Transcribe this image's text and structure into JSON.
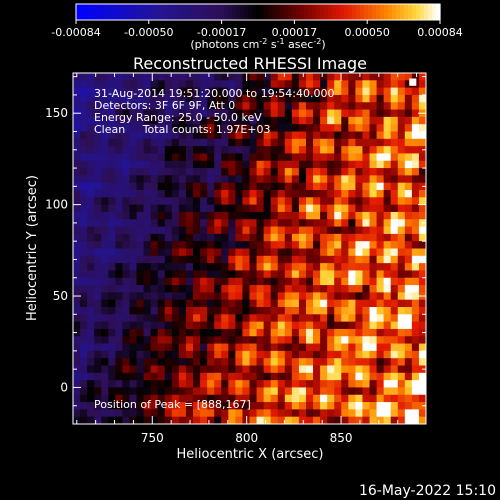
{
  "chart_data": {
    "type": "heatmap",
    "title": "Reconstructed RHESSI Image",
    "xlabel": "Heliocentric X (arcsec)",
    "ylabel": "Heliocentric Y (arcsec)",
    "xlim": [
      708,
      895
    ],
    "ylim": [
      -20,
      172
    ],
    "x_ticks": [
      750,
      800,
      850
    ],
    "y_ticks": [
      0,
      50,
      100,
      150
    ],
    "colorbar": {
      "colormap": "red-temperature with blue negatives",
      "range": [
        -0.00084,
        0.00084
      ],
      "ticks": [
        "-0.00084",
        "-0.00050",
        "-0.00017",
        "0.00017",
        "0.00050",
        "0.00084"
      ],
      "label_main": "(photons cm",
      "label_exp1": "-2",
      "label_mid1": " s",
      "label_exp2": "-1",
      "label_mid2": " asec",
      "label_exp3": "-2",
      "label_end": ")"
    },
    "annotations": [
      "31-Aug-2014 19:51:20.000 to 19:54:40.000",
      "Detectors: 3F 6F 9F, Att 0",
      "Energy Range: 25.0 - 50.0 keV",
      "Clean     Total counts: 1.97E+03"
    ],
    "peak_label": "Position of Peak = [888,167]",
    "peak": [
      888,
      167
    ]
  },
  "footer": {
    "timestamp": "16-May-2022 15:10"
  }
}
